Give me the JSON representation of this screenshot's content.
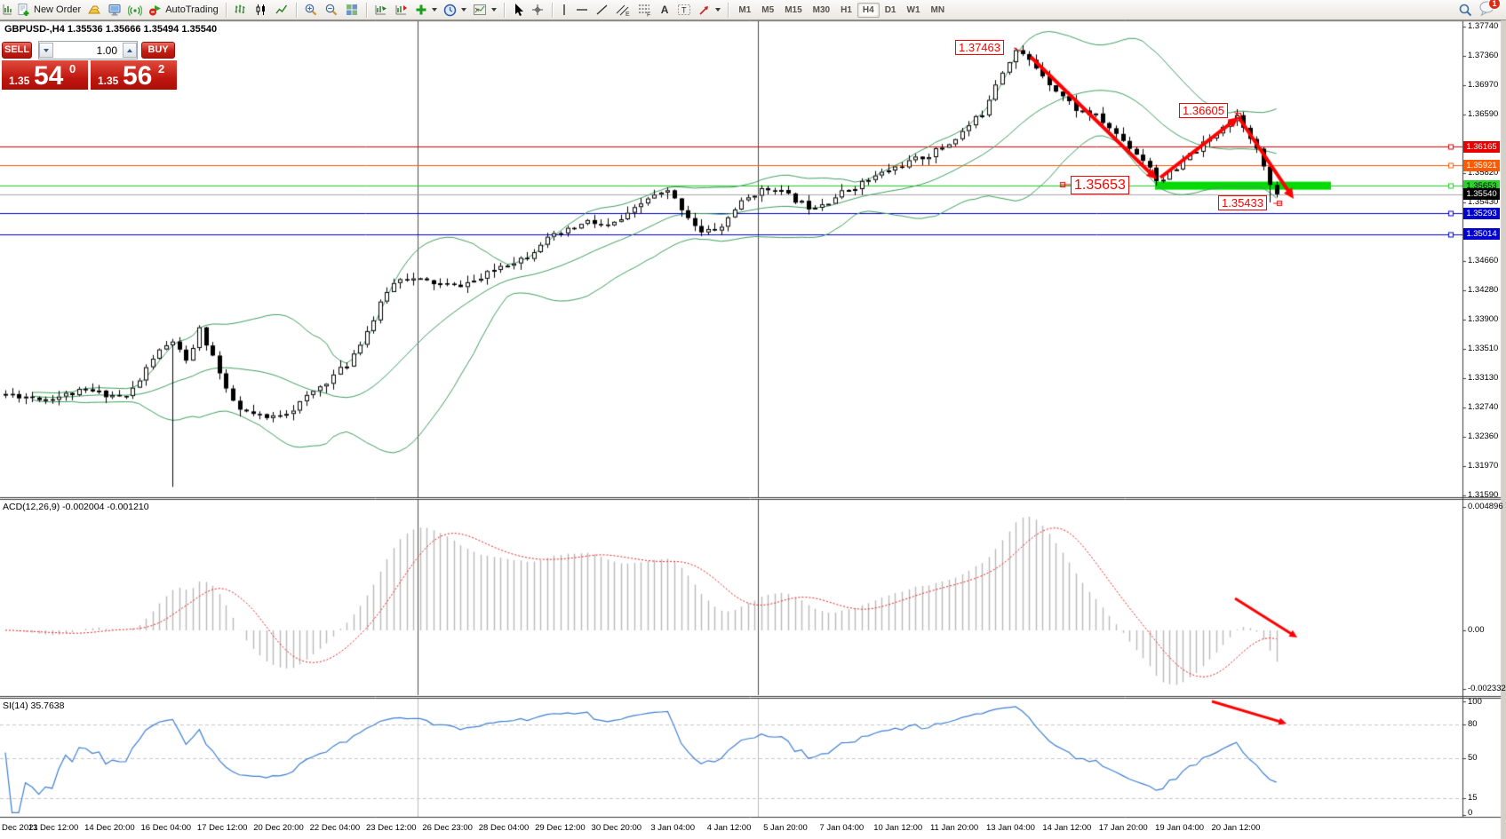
{
  "toolbar": {
    "new_order_label": "New Order",
    "autotrading_label": "AutoTrading",
    "timeframes": [
      "M1",
      "M5",
      "M15",
      "M30",
      "H1",
      "H4",
      "D1",
      "W1",
      "MN"
    ],
    "active_timeframe": "H4",
    "notification_count": "1",
    "text_tool_label": "A"
  },
  "chart": {
    "title": "GBPUSD-,H4 1.35536 1.35666 1.35494 1.35540",
    "symbol": "GBPUSD-",
    "period": "H4",
    "ohlc": {
      "open": "1.35536",
      "high": "1.35666",
      "low": "1.35494",
      "close": "1.35540"
    }
  },
  "trade_panel": {
    "sell_label": "SELL",
    "buy_label": "BUY",
    "volume": "1.00",
    "sell_price_small": "1.35",
    "sell_price_big": "54",
    "sell_price_sup": "0",
    "buy_price_small": "1.35",
    "buy_price_big": "56",
    "buy_price_sup": "2"
  },
  "annotations": {
    "peak": "1.37463",
    "lower_high": "1.36605",
    "support": "1.35653",
    "low": "1.35433"
  },
  "macd": {
    "label": "ACD(12,26,9) -0.002004 -0.001210",
    "scale": [
      0.004896,
      0.0,
      -0.002332
    ],
    "scale_text": [
      "0.004896",
      "0.00",
      "-0.002332"
    ]
  },
  "rsi": {
    "label": "SI(14) 35.7638",
    "scale": [
      100,
      80,
      50,
      15,
      0
    ],
    "scale_text": [
      "100",
      "80",
      "50",
      "15",
      "0"
    ],
    "grid_levels": [
      80,
      50,
      15
    ]
  },
  "chart_data": {
    "type": "candlestick",
    "symbol": "GBPUSD-",
    "timeframe": "H4",
    "bid": "1.35540",
    "ask": "1.35562",
    "y_range": [
      1.3159,
      1.3774
    ],
    "scale_ticks": [
      {
        "t": "1.37740"
      },
      {
        "t": "1.37360"
      },
      {
        "t": "1.36970"
      },
      {
        "t": "1.36590"
      },
      {
        "t": "1.36165",
        "bg": "#e80000",
        "fg": "#ffffff"
      },
      {
        "t": "1.35921",
        "bg": "#ff5a00",
        "fg": "#ffffff"
      },
      {
        "t": "1.35820"
      },
      {
        "t": "1.35653",
        "bg": "#2bd22b",
        "fg": "#000000"
      },
      {
        "t": "1.35540",
        "bg": "#000000",
        "fg": "#ffffff"
      },
      {
        "t": "1.35430"
      },
      {
        "t": "1.35293",
        "bg": "#0000d0",
        "fg": "#ffffff"
      },
      {
        "t": "1.35014",
        "bg": "#0000d0",
        "fg": "#ffffff"
      },
      {
        "t": "1.34660"
      },
      {
        "t": "1.34280"
      },
      {
        "t": "1.33900"
      },
      {
        "t": "1.33510"
      },
      {
        "t": "1.33130"
      },
      {
        "t": "1.32740"
      },
      {
        "t": "1.32360"
      },
      {
        "t": "1.31970"
      },
      {
        "t": "1.31590"
      }
    ],
    "levels": [
      {
        "price": 1.36165,
        "color": "#e00000",
        "handle": true
      },
      {
        "price": 1.35921,
        "color": "#ff5a00",
        "handle": true
      },
      {
        "price": 1.35653,
        "color": "#1ccf1c",
        "handle": true
      },
      {
        "price": 1.3554,
        "color": "#a8a8a8",
        "handle": false
      },
      {
        "price": 1.35293,
        "color": "#0000d0",
        "handle": true
      },
      {
        "price": 1.35014,
        "color": "#0000d0",
        "handle": true
      }
    ],
    "support_zone": {
      "price": 1.35653,
      "color": "#00dc00"
    },
    "price_path": [
      [
        0,
        1.3292
      ],
      [
        6,
        1.3286
      ],
      [
        12,
        1.3296
      ],
      [
        18,
        1.3288
      ],
      [
        20,
        1.331
      ],
      [
        22,
        1.334
      ],
      [
        25,
        1.3362
      ],
      [
        27,
        1.3332
      ],
      [
        29,
        1.3376
      ],
      [
        31,
        1.3342
      ],
      [
        33,
        1.3295
      ],
      [
        35,
        1.327
      ],
      [
        39,
        1.3259
      ],
      [
        43,
        1.3273
      ],
      [
        47,
        1.3302
      ],
      [
        51,
        1.3331
      ],
      [
        55,
        1.339
      ],
      [
        57,
        1.3428
      ],
      [
        59,
        1.3446
      ],
      [
        63,
        1.3439
      ],
      [
        67,
        1.3433
      ],
      [
        71,
        1.3443
      ],
      [
        74,
        1.3461
      ],
      [
        78,
        1.3473
      ],
      [
        80,
        1.3491
      ],
      [
        84,
        1.3506
      ],
      [
        87,
        1.3518
      ],
      [
        90,
        1.3511
      ],
      [
        93,
        1.3526
      ],
      [
        96,
        1.3549
      ],
      [
        99,
        1.3557
      ],
      [
        101,
        1.3536
      ],
      [
        104,
        1.3503
      ],
      [
        107,
        1.3511
      ],
      [
        109,
        1.3536
      ],
      [
        112,
        1.3556
      ],
      [
        115,
        1.3563
      ],
      [
        117,
        1.3551
      ],
      [
        120,
        1.3538
      ],
      [
        123,
        1.3546
      ],
      [
        126,
        1.3561
      ],
      [
        129,
        1.3573
      ],
      [
        132,
        1.3586
      ],
      [
        135,
        1.3596
      ],
      [
        138,
        1.3606
      ],
      [
        141,
        1.3621
      ],
      [
        143,
        1.3636
      ],
      [
        146,
        1.3661
      ],
      [
        148,
        1.3701
      ],
      [
        150,
        1.3731
      ],
      [
        151,
        1.3743
      ],
      [
        153,
        1.3729
      ],
      [
        155,
        1.3711
      ],
      [
        157,
        1.3691
      ],
      [
        160,
        1.3666
      ],
      [
        163,
        1.3656
      ],
      [
        165,
        1.3641
      ],
      [
        168,
        1.3616
      ],
      [
        171,
        1.3591
      ],
      [
        172,
        1.3572
      ],
      [
        175,
        1.3586
      ],
      [
        177,
        1.3606
      ],
      [
        180,
        1.3626
      ],
      [
        182,
        1.3646
      ],
      [
        184,
        1.3658
      ],
      [
        186,
        1.3631
      ],
      [
        188,
        1.3591
      ],
      [
        189,
        1.3562
      ],
      [
        190,
        1.3554
      ]
    ],
    "wick_overrides": [
      {
        "i": 25,
        "low": 1.317
      },
      {
        "i": 151,
        "high": 1.37463
      },
      {
        "i": 172,
        "low": 1.35653
      },
      {
        "i": 189,
        "low": 1.35433
      }
    ],
    "indicators": {
      "bollinger": {
        "period": 20,
        "deviation": 2,
        "color": "#3f9e5f"
      },
      "macd": {
        "fast": 12,
        "slow": 26,
        "signal": 9,
        "main": -0.002004,
        "signal_value": -0.00121
      },
      "rsi": {
        "period": 14,
        "value": 35.7638
      }
    },
    "timeline": [
      "Dec 2021",
      "13 Dec 12:00",
      "14 Dec 20:00",
      "16 Dec 04:00",
      "17 Dec 12:00",
      "20 Dec 20:00",
      "22 Dec 04:00",
      "23 Dec 12:00",
      "26 Dec 23:00",
      "28 Dec 04:00",
      "29 Dec 12:00",
      "30 Dec 20:00",
      "3 Jan 04:00",
      "4 Jan 12:00",
      "5 Jan 20:00",
      "7 Jan 04:00",
      "10 Jan 12:00",
      "11 Jan 20:00",
      "13 Jan 04:00",
      "14 Jan 12:00",
      "17 Jan 20:00",
      "19 Jan 04:00",
      "20 Jan 12:00"
    ]
  }
}
